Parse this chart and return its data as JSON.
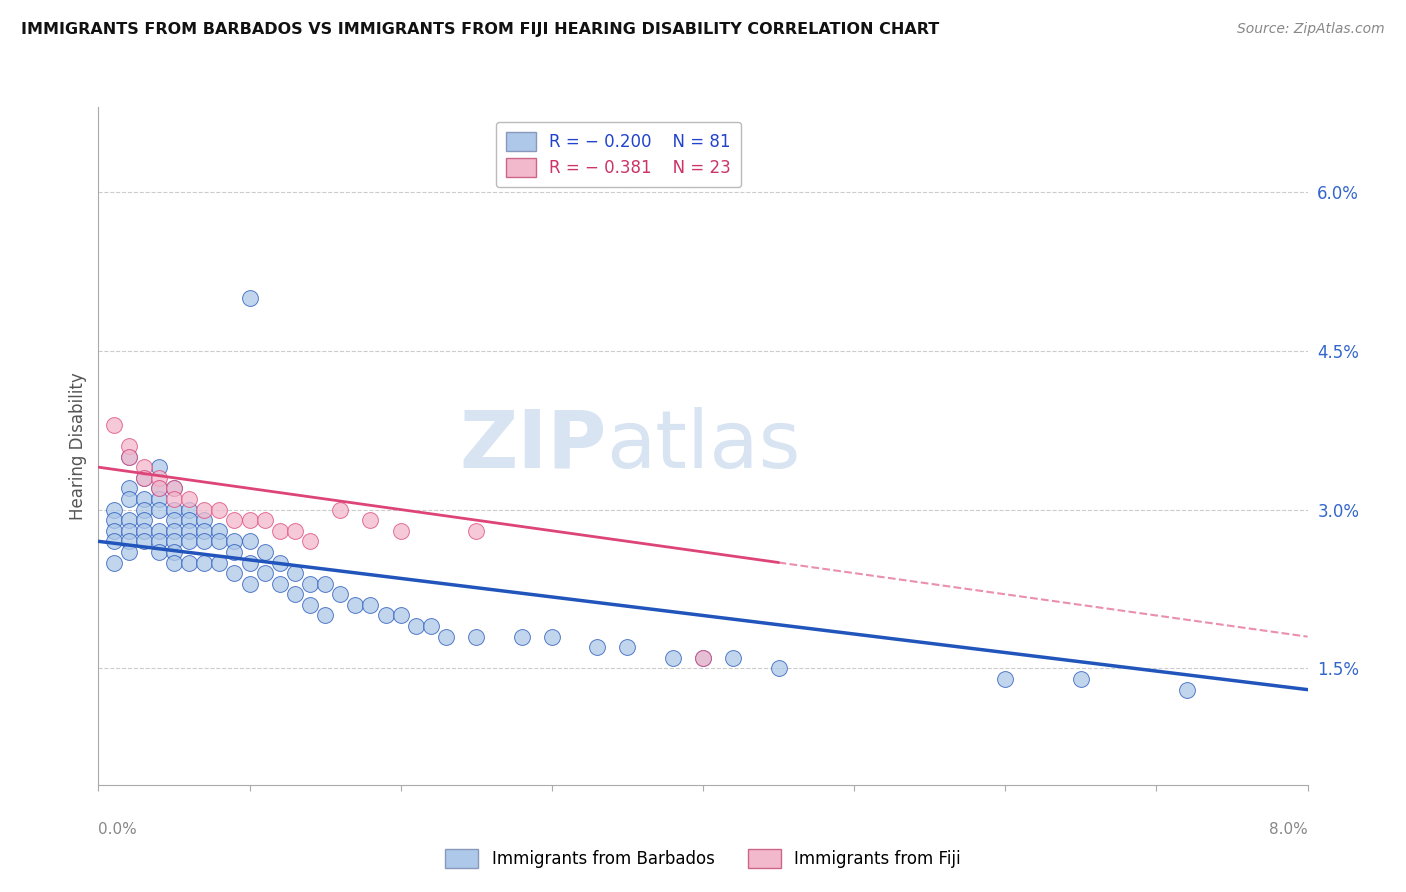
{
  "title": "IMMIGRANTS FROM BARBADOS VS IMMIGRANTS FROM FIJI HEARING DISABILITY CORRELATION CHART",
  "source": "Source: ZipAtlas.com",
  "ylabel": "Hearing Disability",
  "ylabel_right_ticks": [
    "6.0%",
    "4.5%",
    "3.0%",
    "1.5%"
  ],
  "ylabel_right_vals": [
    0.06,
    0.045,
    0.03,
    0.015
  ],
  "xmin": 0.0,
  "xmax": 0.08,
  "ymin": 0.004,
  "ymax": 0.068,
  "R_barbados": -0.2,
  "N_barbados": 81,
  "R_fiji": -0.381,
  "N_fiji": 23,
  "color_barbados": "#adc8e8",
  "color_fiji": "#f2b8cc",
  "line_color_barbados": "#2255bb",
  "line_color_fiji": "#dd4477",
  "watermark_color": "#d8e4f2",
  "legend_label_barbados": "Immigrants from Barbados",
  "legend_label_fiji": "Immigrants from Fiji",
  "barbados_x": [
    0.001,
    0.001,
    0.001,
    0.001,
    0.001,
    0.002,
    0.002,
    0.002,
    0.002,
    0.002,
    0.002,
    0.002,
    0.003,
    0.003,
    0.003,
    0.003,
    0.003,
    0.003,
    0.004,
    0.004,
    0.004,
    0.004,
    0.004,
    0.004,
    0.004,
    0.005,
    0.005,
    0.005,
    0.005,
    0.005,
    0.005,
    0.005,
    0.006,
    0.006,
    0.006,
    0.006,
    0.006,
    0.007,
    0.007,
    0.007,
    0.007,
    0.008,
    0.008,
    0.008,
    0.009,
    0.009,
    0.009,
    0.01,
    0.01,
    0.01,
    0.011,
    0.011,
    0.012,
    0.012,
    0.013,
    0.013,
    0.014,
    0.014,
    0.015,
    0.015,
    0.016,
    0.017,
    0.018,
    0.019,
    0.02,
    0.021,
    0.022,
    0.023,
    0.025,
    0.028,
    0.03,
    0.033,
    0.035,
    0.038,
    0.04,
    0.042,
    0.045,
    0.06,
    0.065,
    0.072,
    0.01
  ],
  "barbados_y": [
    0.03,
    0.029,
    0.028,
    0.027,
    0.025,
    0.035,
    0.032,
    0.031,
    0.029,
    0.028,
    0.027,
    0.026,
    0.033,
    0.031,
    0.03,
    0.029,
    0.028,
    0.027,
    0.034,
    0.032,
    0.031,
    0.03,
    0.028,
    0.027,
    0.026,
    0.032,
    0.03,
    0.029,
    0.028,
    0.027,
    0.026,
    0.025,
    0.03,
    0.029,
    0.028,
    0.027,
    0.025,
    0.029,
    0.028,
    0.027,
    0.025,
    0.028,
    0.027,
    0.025,
    0.027,
    0.026,
    0.024,
    0.027,
    0.025,
    0.023,
    0.026,
    0.024,
    0.025,
    0.023,
    0.024,
    0.022,
    0.023,
    0.021,
    0.023,
    0.02,
    0.022,
    0.021,
    0.021,
    0.02,
    0.02,
    0.019,
    0.019,
    0.018,
    0.018,
    0.018,
    0.018,
    0.017,
    0.017,
    0.016,
    0.016,
    0.016,
    0.015,
    0.014,
    0.014,
    0.013,
    0.05
  ],
  "fiji_x": [
    0.001,
    0.002,
    0.002,
    0.003,
    0.003,
    0.004,
    0.004,
    0.005,
    0.005,
    0.006,
    0.007,
    0.008,
    0.009,
    0.01,
    0.011,
    0.012,
    0.013,
    0.014,
    0.016,
    0.018,
    0.02,
    0.025,
    0.04
  ],
  "fiji_y": [
    0.038,
    0.036,
    0.035,
    0.034,
    0.033,
    0.033,
    0.032,
    0.032,
    0.031,
    0.031,
    0.03,
    0.03,
    0.029,
    0.029,
    0.029,
    0.028,
    0.028,
    0.027,
    0.03,
    0.029,
    0.028,
    0.028,
    0.016
  ],
  "blue_line_x0": 0.0,
  "blue_line_y0": 0.027,
  "blue_line_x1": 0.08,
  "blue_line_y1": 0.013,
  "pink_line_x0": 0.0,
  "pink_line_y0": 0.034,
  "pink_line_x1": 0.045,
  "pink_line_y1": 0.025
}
